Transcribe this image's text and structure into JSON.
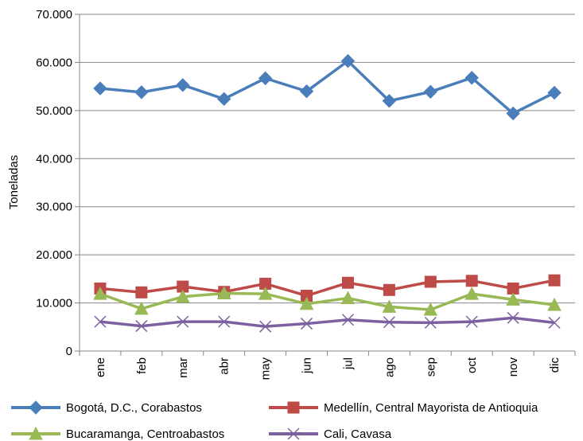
{
  "chart_data": {
    "type": "line",
    "title": "",
    "xlabel": "",
    "ylabel": "Toneladas",
    "ylim": [
      0,
      70000
    ],
    "y_ticks": [
      0,
      10000,
      20000,
      30000,
      40000,
      50000,
      60000,
      70000
    ],
    "y_tick_labels": [
      "0",
      "10.000",
      "20.000",
      "30.000",
      "40.000",
      "50.000",
      "60.000",
      "70.000"
    ],
    "categories": [
      "ene",
      "feb",
      "mar",
      "abr",
      "may",
      "jun",
      "jul",
      "ago",
      "sep",
      "oct",
      "nov",
      "dic"
    ],
    "grid": "horizontal",
    "legend_position": "bottom",
    "series": [
      {
        "name": "Bogotá, D.C., Corabastos",
        "color": "#4a7ebb",
        "marker": "diamond",
        "values": [
          54600,
          53800,
          55300,
          52400,
          56700,
          54000,
          60300,
          52000,
          53900,
          56800,
          49400,
          53700
        ]
      },
      {
        "name": "Medellín, Central Mayorista de Antioquia",
        "color": "#be4b48",
        "marker": "square",
        "values": [
          13000,
          12200,
          13400,
          12300,
          14000,
          11500,
          14200,
          12700,
          14400,
          14600,
          13000,
          14700
        ]
      },
      {
        "name": "Bucaramanga, Centroabastos",
        "color": "#98b954",
        "marker": "triangle",
        "values": [
          11900,
          8800,
          11300,
          12000,
          11900,
          9800,
          11000,
          9200,
          8600,
          11900,
          10700,
          9600
        ]
      },
      {
        "name": "Cali, Cavasa",
        "color": "#7d60a0",
        "marker": "x",
        "values": [
          6100,
          5200,
          6100,
          6100,
          5100,
          5700,
          6500,
          6000,
          5900,
          6100,
          6900,
          5900
        ]
      }
    ]
  }
}
